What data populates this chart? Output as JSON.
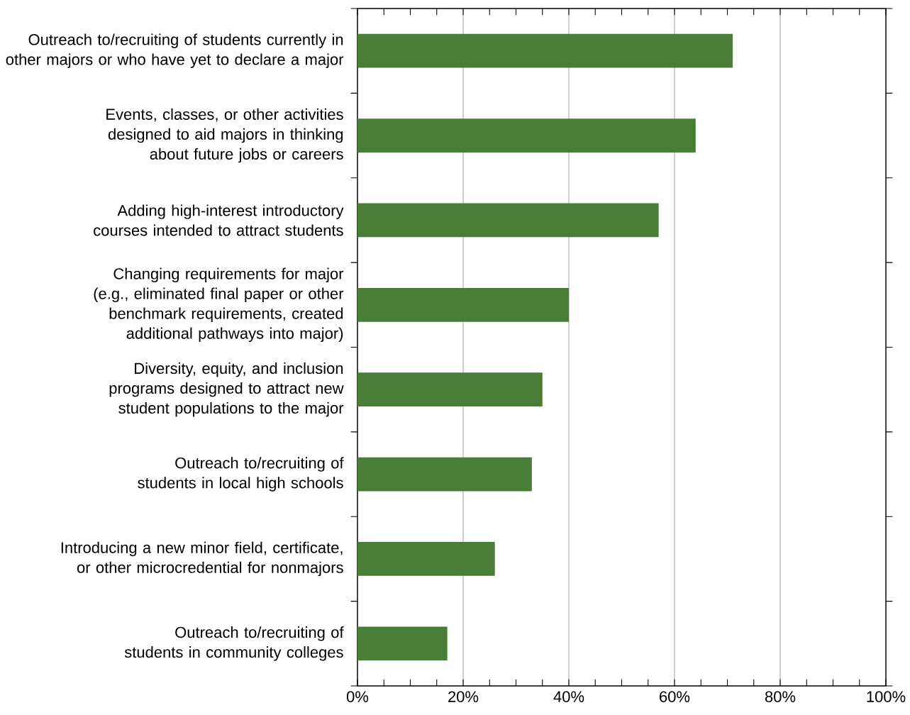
{
  "chart_data": {
    "type": "bar",
    "orientation": "horizontal",
    "categories": [
      "Outreach to/recruiting of students currently in other majors or who have yet to declare a major",
      "Events, classes, or other activities designed to aid majors in thinking about future jobs or careers",
      "Adding high-interest introductory courses intended to attract students",
      "Changing requirements for major (e.g., eliminated final paper or other benchmark requirements, created additional pathways into major)",
      "Diversity, equity, and inclusion programs designed to attract new student populations to the major",
      "Outreach to/recruiting of students in local high schools",
      "Introducing a new minor field, certificate, or other microcredential for nonmajors",
      "Outreach to/recruiting of students in community colleges"
    ],
    "values": [
      71,
      64,
      57,
      40,
      35,
      33,
      26,
      17
    ],
    "color": "#497c37",
    "xlim": [
      0,
      100
    ],
    "xticks": [
      {
        "value": 0,
        "label": "0%"
      },
      {
        "value": 20,
        "label": "20%"
      },
      {
        "value": 40,
        "label": "40%"
      },
      {
        "value": 60,
        "label": "60%"
      },
      {
        "value": 80,
        "label": "80%"
      },
      {
        "value": 100,
        "label": "100%"
      }
    ],
    "grid": "x"
  }
}
